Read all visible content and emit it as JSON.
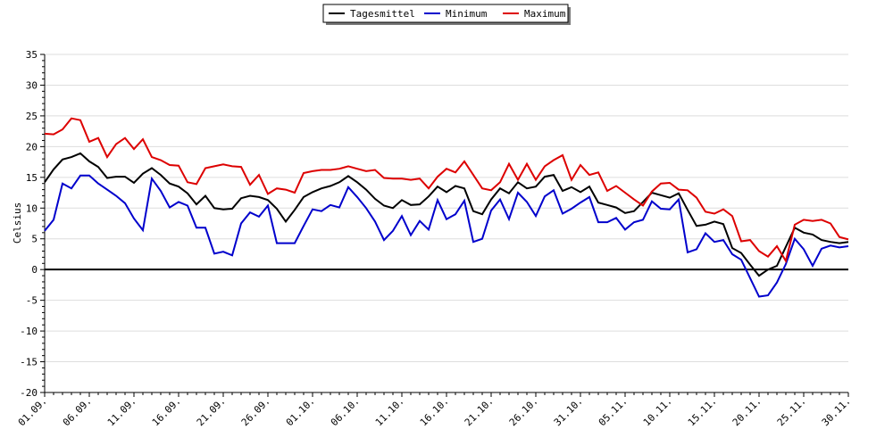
{
  "chart_data": {
    "type": "line",
    "xlabel": "",
    "ylabel": "Celsius",
    "ylim": [
      -20,
      35
    ],
    "yticks": [
      -20,
      -15,
      -10,
      -5,
      0,
      5,
      10,
      15,
      20,
      25,
      30,
      35
    ],
    "grid": true,
    "legend_position": "top-center",
    "xtick_labels": [
      "01.09.",
      "06.09.",
      "11.09.",
      "16.09.",
      "21.09.",
      "26.09.",
      "01.10.",
      "06.10.",
      "11.10.",
      "16.10.",
      "21.10.",
      "26.10.",
      "31.10.",
      "05.11.",
      "10.11.",
      "15.11.",
      "20.11.",
      "25.11.",
      "30.11."
    ],
    "series": [
      {
        "name": "Tagesmittel",
        "color": "#000000",
        "values": [
          14.2,
          16.3,
          17.9,
          18.3,
          18.9,
          17.6,
          16.7,
          14.9,
          15.1,
          15.1,
          14.1,
          15.6,
          16.5,
          15.4,
          14.0,
          13.5,
          12.4,
          10.6,
          12.0,
          10.0,
          9.8,
          9.9,
          11.6,
          12.0,
          11.8,
          11.3,
          9.9,
          7.8,
          9.7,
          11.8,
          12.6,
          13.2,
          13.6,
          14.2,
          15.2,
          14.2,
          13.0,
          11.5,
          10.4,
          10.0,
          11.3,
          10.5,
          10.6,
          11.9,
          13.5,
          12.6,
          13.6,
          13.2,
          9.5,
          9.0,
          11.4,
          13.2,
          12.4,
          14.2,
          13.2,
          13.5,
          15.1,
          15.4,
          12.8,
          13.4,
          12.6,
          13.5,
          10.9,
          10.5,
          10.1,
          9.2,
          9.5,
          11.0,
          12.5,
          12.1,
          11.7,
          12.4,
          9.7,
          7.1,
          7.3,
          7.8,
          7.4,
          3.5,
          2.7,
          0.8,
          -1.0,
          0.0,
          0.6,
          3.7,
          6.8,
          6.0,
          5.7,
          4.8,
          4.5,
          4.3,
          4.5
        ]
      },
      {
        "name": "Minimum",
        "color": "#0000cc",
        "values": [
          6.3,
          8.1,
          14.0,
          13.2,
          15.3,
          15.3,
          14.0,
          13.0,
          12.0,
          10.8,
          8.3,
          6.4,
          14.8,
          12.8,
          10.1,
          11.0,
          10.4,
          6.8,
          6.8,
          2.6,
          2.9,
          2.3,
          7.5,
          9.3,
          8.6,
          10.4,
          4.3,
          4.3,
          4.3,
          7.1,
          9.8,
          9.5,
          10.5,
          10.1,
          13.4,
          11.8,
          10.0,
          7.8,
          4.8,
          6.3,
          8.7,
          5.6,
          7.9,
          6.5,
          11.3,
          8.2,
          9.0,
          11.2,
          4.5,
          5.0,
          9.6,
          11.4,
          8.2,
          12.5,
          11.0,
          8.7,
          11.9,
          12.9,
          9.1,
          9.9,
          10.9,
          11.8,
          7.7,
          7.7,
          8.4,
          6.5,
          7.7,
          8.1,
          11.1,
          9.9,
          9.8,
          11.4,
          2.8,
          3.3,
          5.9,
          4.5,
          4.8,
          2.5,
          1.6,
          -1.4,
          -4.4,
          -4.2,
          -2.1,
          0.9,
          5.0,
          3.3,
          0.6,
          3.4,
          3.9,
          3.6,
          3.8
        ]
      },
      {
        "name": "Maximum",
        "color": "#dd0000",
        "values": [
          22.1,
          22.0,
          22.8,
          24.6,
          24.3,
          20.8,
          21.4,
          18.3,
          20.4,
          21.4,
          19.6,
          21.2,
          18.3,
          17.8,
          17.0,
          16.9,
          14.2,
          13.9,
          16.5,
          16.8,
          17.1,
          16.8,
          16.7,
          13.8,
          15.4,
          12.3,
          13.2,
          13.0,
          12.5,
          15.7,
          16.0,
          16.2,
          16.2,
          16.4,
          16.8,
          16.4,
          16.0,
          16.2,
          14.9,
          14.8,
          14.8,
          14.6,
          14.8,
          13.2,
          15.1,
          16.4,
          15.8,
          17.6,
          15.4,
          13.2,
          12.9,
          14.2,
          17.2,
          14.6,
          17.2,
          14.6,
          16.8,
          17.8,
          18.6,
          14.6,
          17.0,
          15.4,
          15.8,
          12.8,
          13.6,
          12.5,
          11.4,
          10.4,
          12.7,
          14.0,
          14.1,
          13.0,
          12.9,
          11.7,
          9.4,
          9.1,
          9.8,
          8.7,
          4.6,
          4.8,
          3.0,
          2.1,
          3.8,
          1.4,
          7.3,
          8.1,
          7.9,
          8.1,
          7.5,
          5.3,
          4.9
        ]
      }
    ]
  }
}
